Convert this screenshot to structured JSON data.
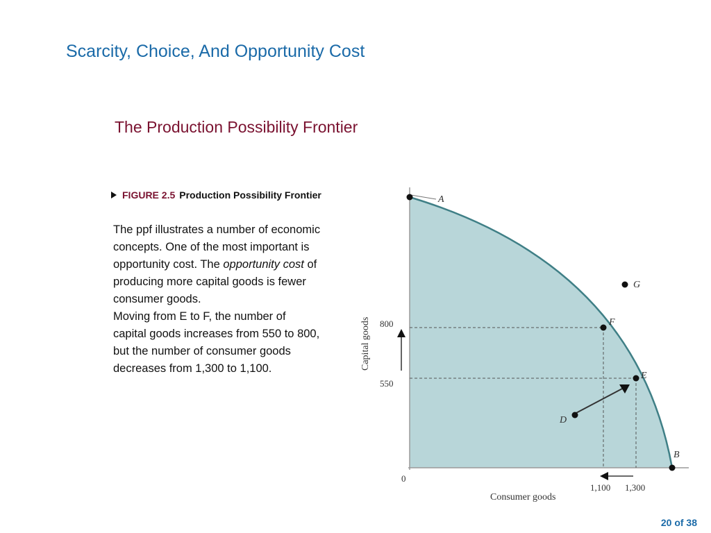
{
  "slide": {
    "title": "Scarcity, Choice, And Opportunity Cost",
    "subtitle": "The Production Possibility Frontier",
    "page_indicator": "20 of 38"
  },
  "figure": {
    "number": "FIGURE 2.5",
    "title": "Production Possibility Frontier",
    "text_before": "The ppf illustrates a number of economic concepts. One of the most important is opportunity cost. The ",
    "text_italic": "opportunity cost",
    "text_after": " of producing more capital goods is fewer consumer goods.",
    "text_second": "Moving from E to F, the number of capital goods increases from 550 to 800, but the number of consumer goods decreases from 1,300 to 1,100."
  },
  "chart_data": {
    "type": "area",
    "xlabel": "Consumer goods",
    "ylabel": "Capital goods",
    "fill_color": "#b8d6d9",
    "curve_color": "#3f7f86",
    "origin_label": "0",
    "x_ticks": [
      "1,100",
      "1,300"
    ],
    "y_ticks": [
      "800",
      "550"
    ],
    "points": [
      {
        "label": "A",
        "position": "y-intercept"
      },
      {
        "label": "B",
        "position": "x-intercept"
      },
      {
        "label": "F",
        "x": 1100,
        "y": 800
      },
      {
        "label": "E",
        "x": 1300,
        "y": 550
      },
      {
        "label": "G",
        "position": "outside frontier"
      },
      {
        "label": "D",
        "position": "inside frontier"
      }
    ]
  }
}
